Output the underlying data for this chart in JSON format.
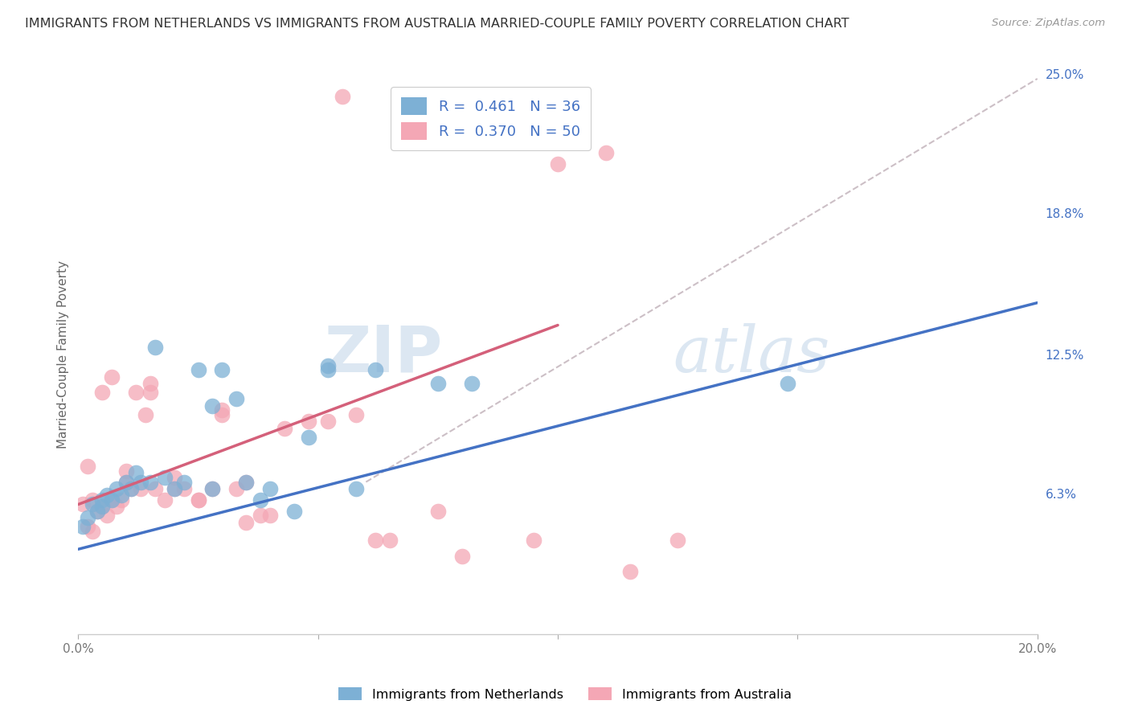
{
  "title": "IMMIGRANTS FROM NETHERLANDS VS IMMIGRANTS FROM AUSTRALIA MARRIED-COUPLE FAMILY POVERTY CORRELATION CHART",
  "source": "Source: ZipAtlas.com",
  "ylabel_label": "Married-Couple Family Poverty",
  "x_min": 0.0,
  "x_max": 0.2,
  "y_min": 0.0,
  "y_max": 0.25,
  "x_tick_positions": [
    0.0,
    0.05,
    0.1,
    0.15,
    0.2
  ],
  "x_tick_labels": [
    "0.0%",
    "",
    "",
    "",
    "20.0%"
  ],
  "y_tick_vals_right": [
    0.25,
    0.188,
    0.125,
    0.063,
    0.0
  ],
  "y_tick_labels_right": [
    "25.0%",
    "18.8%",
    "12.5%",
    "6.3%",
    ""
  ],
  "netherlands_color": "#7db0d5",
  "australia_color": "#f4a7b5",
  "netherlands_line_color": "#4472c4",
  "australia_line_color": "#d4607a",
  "netherlands_R": 0.461,
  "netherlands_N": 36,
  "australia_R": 0.37,
  "australia_N": 50,
  "nl_scatter_x": [
    0.001,
    0.002,
    0.003,
    0.004,
    0.005,
    0.005,
    0.006,
    0.007,
    0.008,
    0.009,
    0.01,
    0.011,
    0.012,
    0.013,
    0.015,
    0.016,
    0.018,
    0.02,
    0.022,
    0.025,
    0.028,
    0.03,
    0.033,
    0.035,
    0.038,
    0.04,
    0.045,
    0.048,
    0.052,
    0.058,
    0.062,
    0.075,
    0.082,
    0.148,
    0.052,
    0.028
  ],
  "nl_scatter_y": [
    0.048,
    0.052,
    0.058,
    0.055,
    0.06,
    0.057,
    0.062,
    0.06,
    0.065,
    0.062,
    0.068,
    0.065,
    0.072,
    0.068,
    0.068,
    0.128,
    0.07,
    0.065,
    0.068,
    0.118,
    0.102,
    0.118,
    0.105,
    0.068,
    0.06,
    0.065,
    0.055,
    0.088,
    0.118,
    0.065,
    0.118,
    0.112,
    0.112,
    0.112,
    0.12,
    0.065
  ],
  "au_scatter_x": [
    0.001,
    0.002,
    0.003,
    0.004,
    0.005,
    0.006,
    0.007,
    0.008,
    0.009,
    0.01,
    0.011,
    0.012,
    0.013,
    0.014,
    0.015,
    0.016,
    0.018,
    0.02,
    0.022,
    0.025,
    0.028,
    0.03,
    0.033,
    0.035,
    0.038,
    0.04,
    0.043,
    0.048,
    0.055,
    0.058,
    0.065,
    0.075,
    0.095,
    0.1,
    0.11,
    0.125,
    0.002,
    0.003,
    0.005,
    0.007,
    0.01,
    0.015,
    0.02,
    0.025,
    0.03,
    0.035,
    0.052,
    0.062,
    0.08,
    0.115
  ],
  "au_scatter_y": [
    0.058,
    0.048,
    0.046,
    0.055,
    0.057,
    0.053,
    0.06,
    0.057,
    0.06,
    0.073,
    0.065,
    0.108,
    0.065,
    0.098,
    0.108,
    0.065,
    0.06,
    0.065,
    0.065,
    0.06,
    0.065,
    0.098,
    0.065,
    0.05,
    0.053,
    0.053,
    0.092,
    0.095,
    0.24,
    0.098,
    0.042,
    0.055,
    0.042,
    0.21,
    0.215,
    0.042,
    0.075,
    0.06,
    0.108,
    0.115,
    0.068,
    0.112,
    0.07,
    0.06,
    0.1,
    0.068,
    0.095,
    0.042,
    0.035,
    0.028
  ],
  "nl_trend_x": [
    0.0,
    0.2
  ],
  "nl_trend_y": [
    0.038,
    0.148
  ],
  "au_trend_x": [
    0.0,
    0.1
  ],
  "au_trend_y": [
    0.058,
    0.138
  ],
  "ref_line_x": [
    0.06,
    0.2
  ],
  "ref_line_y": [
    0.068,
    0.248
  ],
  "scatter_size": 200,
  "background_color": "#ffffff",
  "grid_color": "#e0e0e0",
  "watermark_color": "#c5d8ea",
  "watermark_alpha": 0.6
}
